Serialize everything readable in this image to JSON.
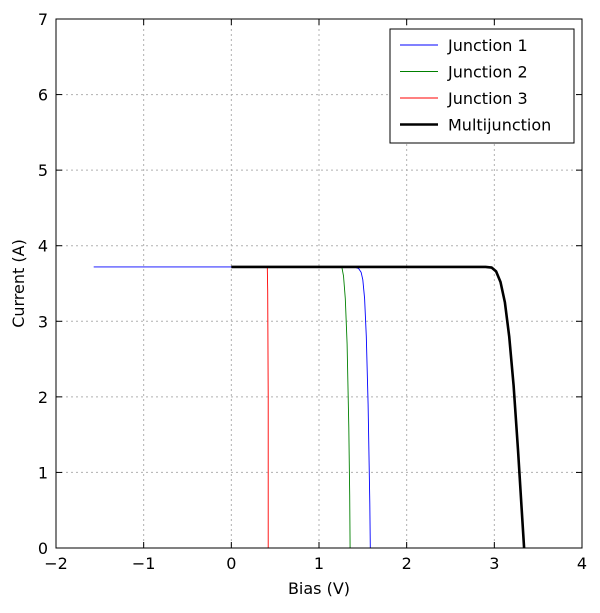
{
  "chart_data": {
    "type": "line",
    "title": "",
    "xlabel": "Bias (V)",
    "ylabel": "Current (A)",
    "xlim": [
      -2,
      4
    ],
    "ylim": [
      0,
      7
    ],
    "xticks": [
      -2,
      -1,
      0,
      1,
      2,
      3,
      4
    ],
    "yticks": [
      0,
      1,
      2,
      3,
      4,
      5,
      6,
      7
    ],
    "xtick_labels": [
      "−2",
      "−1",
      "0",
      "1",
      "2",
      "3",
      "4"
    ],
    "ytick_labels": [
      "0",
      "1",
      "2",
      "3",
      "4",
      "5",
      "6",
      "7"
    ],
    "grid": true,
    "legend_position": "top-right",
    "series": [
      {
        "name": "Junction 1",
        "color": "#0000ff",
        "width": "thin",
        "x": [
          -1.57,
          0.0,
          1.0,
          1.4,
          1.45,
          1.48,
          1.5,
          1.52,
          1.54,
          1.56,
          1.58,
          1.585
        ],
        "y": [
          3.72,
          3.72,
          3.72,
          3.72,
          3.7,
          3.65,
          3.55,
          3.3,
          2.8,
          1.9,
          0.6,
          0.0
        ]
      },
      {
        "name": "Junction 2",
        "color": "#008000",
        "width": "thin",
        "x": [
          1.26,
          1.28,
          1.3,
          1.32,
          1.34,
          1.35,
          1.355
        ],
        "y": [
          3.72,
          3.6,
          3.3,
          2.7,
          1.6,
          0.7,
          0.0
        ]
      },
      {
        "name": "Junction 3",
        "color": "#ff0000",
        "width": "thin",
        "x": [
          0.41,
          0.415,
          0.42,
          0.42
        ],
        "y": [
          3.72,
          3.4,
          2.0,
          0.0
        ]
      },
      {
        "name": "Multijunction",
        "color": "#000000",
        "width": "thick",
        "x": [
          0.0,
          1.0,
          2.0,
          2.9,
          2.97,
          3.02,
          3.07,
          3.12,
          3.17,
          3.22,
          3.27,
          3.31,
          3.34
        ],
        "y": [
          3.72,
          3.72,
          3.72,
          3.72,
          3.71,
          3.66,
          3.52,
          3.25,
          2.8,
          2.15,
          1.3,
          0.55,
          0.0
        ]
      }
    ]
  }
}
